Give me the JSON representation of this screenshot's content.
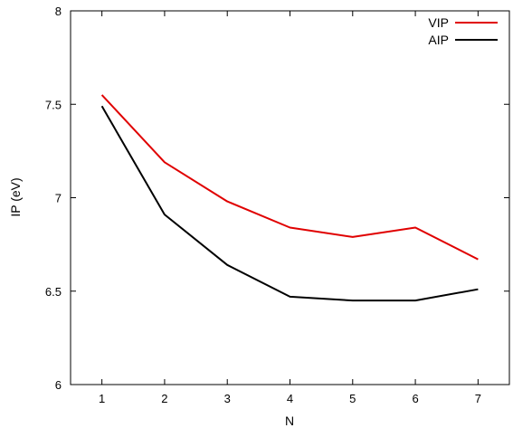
{
  "chart_data": {
    "type": "line",
    "xlabel": "N",
    "ylabel": "IP (eV)",
    "x": [
      1,
      2,
      3,
      4,
      5,
      6,
      7
    ],
    "xlim": [
      0.5,
      7.5
    ],
    "ylim": [
      6,
      8
    ],
    "xticks": [
      "1",
      "2",
      "3",
      "4",
      "5",
      "6",
      "7"
    ],
    "yticks": [
      "6",
      "6.5",
      "7",
      "7.5",
      "8"
    ],
    "grid": false,
    "legend_position": "top-right",
    "series": [
      {
        "name": "VIP",
        "color": "#e00000",
        "values": [
          7.55,
          7.19,
          6.98,
          6.84,
          6.79,
          6.84,
          6.67
        ]
      },
      {
        "name": "AIP",
        "color": "#000000",
        "values": [
          7.49,
          6.91,
          6.64,
          6.47,
          6.45,
          6.45,
          6.51
        ]
      }
    ]
  }
}
